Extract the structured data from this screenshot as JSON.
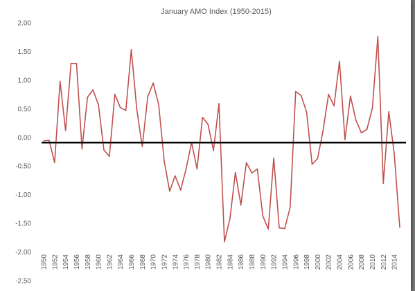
{
  "chart_data": {
    "type": "line",
    "title": "January AMO Index (1950-2015)",
    "xlabel": "",
    "ylabel": "",
    "ylim": [
      -2.5,
      2.0
    ],
    "y_ticks": [
      "2.00",
      "1.50",
      "1.00",
      "0.50",
      "0.00",
      "-0.50",
      "-1.00",
      "-1.50",
      "-2.00",
      "-2.50"
    ],
    "x_ticks": [
      "1950",
      "1952",
      "1954",
      "1956",
      "1958",
      "1960",
      "1962",
      "1964",
      "1966",
      "1968",
      "1970",
      "1972",
      "1974",
      "1976",
      "1978",
      "1980",
      "1982",
      "1984",
      "1986",
      "1988",
      "1990",
      "1992",
      "1994",
      "1996",
      "1998",
      "2000",
      "2002",
      "2004",
      "2006",
      "2008",
      "2010",
      "2012",
      "2014"
    ],
    "x_range": [
      1950,
      2015
    ],
    "grid": false,
    "colors": {
      "series": "#c0504d",
      "baseline": "#000000"
    },
    "baseline_value": -0.09,
    "series": [
      {
        "x": [
          1950,
          1951,
          1952,
          1953,
          1954,
          1955,
          1956,
          1957,
          1958,
          1959,
          1960,
          1961,
          1962,
          1963,
          1964,
          1965,
          1966,
          1967,
          1968,
          1969,
          1970,
          1971,
          1972,
          1973,
          1974,
          1975,
          1976,
          1977,
          1978,
          1979,
          1980,
          1981,
          1982,
          1983,
          1984,
          1985,
          1986,
          1987,
          1988,
          1989,
          1990,
          1991,
          1992,
          1993,
          1994,
          1995,
          1996,
          1997,
          1998,
          1999,
          2000,
          2001,
          2002,
          2003,
          2004,
          2005,
          2006,
          2007,
          2008,
          2009,
          2010,
          2011,
          2012,
          2013,
          2014,
          2015
        ],
        "values": [
          -0.06,
          -0.05,
          -0.44,
          0.98,
          0.12,
          1.29,
          1.29,
          -0.2,
          0.7,
          0.83,
          0.57,
          -0.22,
          -0.33,
          0.75,
          0.52,
          0.47,
          1.53,
          0.49,
          -0.16,
          0.71,
          0.95,
          0.57,
          -0.41,
          -0.94,
          -0.67,
          -0.92,
          -0.55,
          -0.09,
          -0.55,
          0.35,
          0.23,
          -0.23,
          0.59,
          -1.82,
          -1.42,
          -0.61,
          -1.18,
          -0.44,
          -0.62,
          -0.55,
          -1.37,
          -1.6,
          -0.36,
          -1.58,
          -1.59,
          -1.22,
          0.8,
          0.73,
          0.44,
          -0.47,
          -0.37,
          0.12,
          0.75,
          0.55,
          1.33,
          -0.04,
          0.72,
          0.3,
          0.08,
          0.14,
          0.51,
          1.76,
          -0.8,
          0.45,
          -0.29,
          -1.57
        ]
      }
    ]
  }
}
